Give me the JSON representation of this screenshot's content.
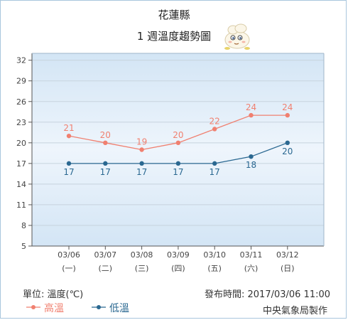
{
  "header": {
    "county": "花蓮縣",
    "subtitle": "1 週溫度趨勢圖"
  },
  "chart_data": {
    "type": "line",
    "categories": [
      "03/06",
      "03/07",
      "03/08",
      "03/09",
      "03/10",
      "03/11",
      "03/12"
    ],
    "weekdays": [
      "(一)",
      "(二)",
      "(三)",
      "(四)",
      "(五)",
      "(六)",
      "(日)"
    ],
    "series": [
      {
        "name": "高溫",
        "values": [
          21,
          20,
          19,
          20,
          22,
          24,
          24
        ],
        "color": "#f08070"
      },
      {
        "name": "低溫",
        "values": [
          17,
          17,
          17,
          17,
          17,
          18,
          20
        ],
        "color": "#2a6891"
      }
    ],
    "yticks": [
      5,
      8,
      11,
      14,
      17,
      20,
      23,
      26,
      29,
      32
    ],
    "ylim": [
      5,
      33
    ],
    "grid": true,
    "legend": "bottom-left"
  },
  "footer": {
    "unit": "單位: 溫度(℃)",
    "issued": "發布時間: 2017/03/06 11:00",
    "credit": "中央氣象局製作"
  },
  "mascot_icon": "cartoon-cloud-mascot-icon"
}
